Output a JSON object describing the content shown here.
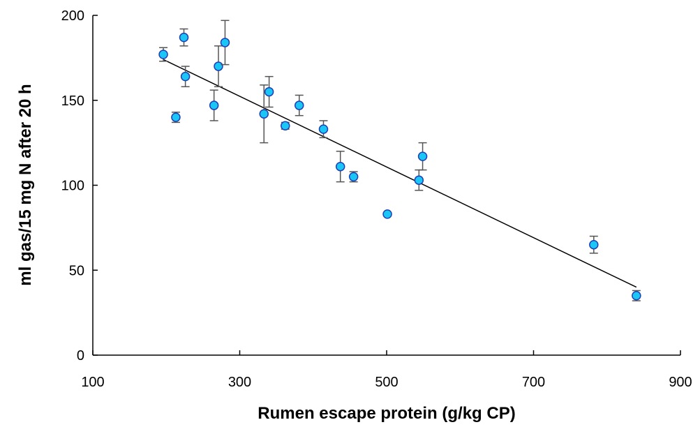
{
  "chart_data": {
    "type": "scatter",
    "title": "",
    "xlabel": "Rumen escape protein (g/kg CP)",
    "ylabel": "ml gas/15 mg N after 20 h",
    "xlim": [
      100,
      900
    ],
    "ylim": [
      0,
      200
    ],
    "x_ticks": [
      100,
      300,
      500,
      700,
      900
    ],
    "x_tick_labels": [
      "100",
      "300",
      "500",
      "700",
      "900"
    ],
    "y_ticks": [
      0,
      50,
      100,
      150,
      200
    ],
    "y_tick_labels": [
      "0",
      "50",
      "100",
      "150",
      "200"
    ],
    "grid": false,
    "legend": "none",
    "colors": {
      "marker_fill": "#19c6f5",
      "marker_edge": "#1f3fb5",
      "line": "#000000",
      "error_bar": "#555555"
    },
    "points": [
      {
        "x": 196,
        "y": 177,
        "err": 4
      },
      {
        "x": 213,
        "y": 140,
        "err": 3
      },
      {
        "x": 224,
        "y": 187,
        "err": 5
      },
      {
        "x": 226,
        "y": 164,
        "err": 6
      },
      {
        "x": 265,
        "y": 147,
        "err": 9
      },
      {
        "x": 271,
        "y": 170,
        "err": 12
      },
      {
        "x": 280,
        "y": 184,
        "err": 13
      },
      {
        "x": 333,
        "y": 142,
        "err": 17
      },
      {
        "x": 340,
        "y": 155,
        "err": 9
      },
      {
        "x": 362,
        "y": 135,
        "err": 2
      },
      {
        "x": 381,
        "y": 147,
        "err": 6
      },
      {
        "x": 414,
        "y": 133,
        "err": 5
      },
      {
        "x": 437,
        "y": 111,
        "err": 9
      },
      {
        "x": 455,
        "y": 105,
        "err": 3
      },
      {
        "x": 501,
        "y": 83,
        "err": 0
      },
      {
        "x": 544,
        "y": 103,
        "err": 6
      },
      {
        "x": 549,
        "y": 117,
        "err": 8
      },
      {
        "x": 782,
        "y": 65,
        "err": 5
      },
      {
        "x": 840,
        "y": 35,
        "err": 3
      }
    ],
    "trendline": {
      "x": [
        196,
        840
      ],
      "y": [
        174,
        40
      ]
    }
  }
}
